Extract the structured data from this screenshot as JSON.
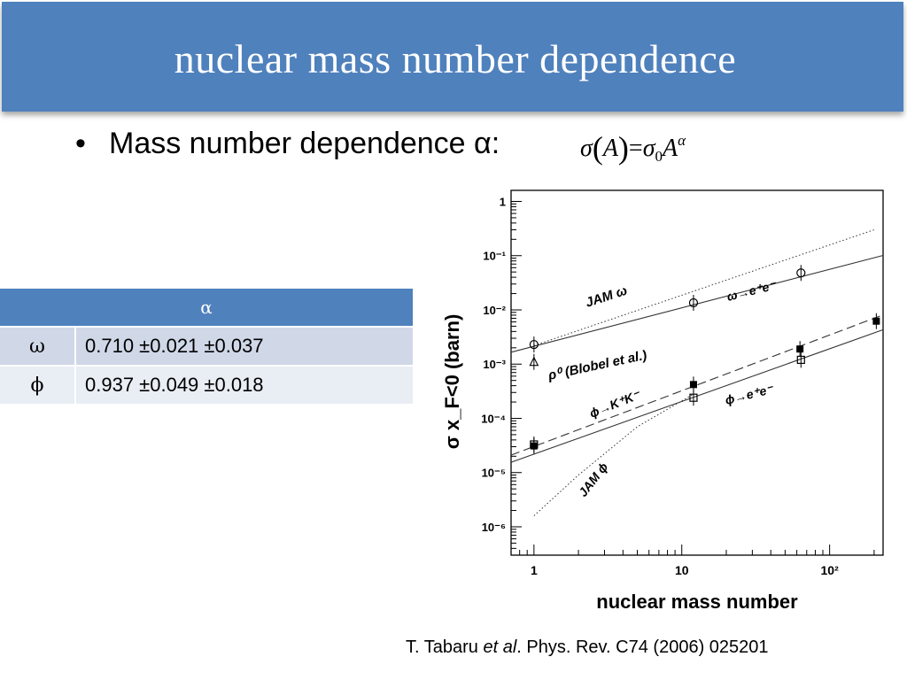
{
  "slide": {
    "title": "nuclear mass number dependence",
    "bullet_text": "Mass number dependence α:",
    "formula": {
      "sigma": "σ",
      "A": "A",
      "eq": "=",
      "sigma0": "σ",
      "sub0": "0",
      "A2": "A",
      "exp": "α"
    },
    "table": {
      "header": "α",
      "rows": [
        {
          "symbol": "ω",
          "value": "0.710 ±0.021 ±0.037"
        },
        {
          "symbol": "ϕ",
          "value": "0.937 ±0.049 ±0.018"
        }
      ]
    },
    "reference": {
      "authors": "T. Tabaru ",
      "etal": "et al",
      "rest": ". Phys. Rev. C74 (2006) 025201"
    }
  },
  "colors": {
    "title_bg": "#4f81bd",
    "table_row1": "#d0d8e8",
    "table_row2": "#e9edf4"
  },
  "chart_data": {
    "type": "scatter",
    "xscale": "log",
    "yscale": "log",
    "xlim": [
      0.7,
      230
    ],
    "ylim": [
      3e-07,
      1.6
    ],
    "xlabel": "nuclear mass number",
    "ylabel": "σ x_F<0 (barn)",
    "xticks": [
      {
        "v": 1,
        "label": "1"
      },
      {
        "v": 10,
        "label": "10"
      },
      {
        "v": 100,
        "label": "10²"
      }
    ],
    "yticks": [
      {
        "v": 1,
        "label": "1"
      },
      {
        "v": 0.1,
        "label": "10⁻¹"
      },
      {
        "v": 0.01,
        "label": "10⁻²"
      },
      {
        "v": 0.001,
        "label": "10⁻³"
      },
      {
        "v": 0.0001,
        "label": "10⁻⁴"
      },
      {
        "v": 1e-05,
        "label": "10⁻⁵"
      },
      {
        "v": 1e-06,
        "label": "10⁻⁶"
      }
    ],
    "series": [
      {
        "name": "ω→e⁺e⁻",
        "marker": "circle",
        "x": [
          1,
          12,
          64
        ],
        "y": [
          0.0023,
          0.0135,
          0.048
        ]
      },
      {
        "name": "ρ⁰ (Blobel et al.)",
        "marker": "triangle",
        "x": [
          1
        ],
        "y": [
          0.0011
        ]
      },
      {
        "name": "ϕ→K⁺K⁻",
        "marker": "filled-square",
        "x": [
          1,
          12,
          63,
          207
        ],
        "y": [
          3.1e-05,
          0.00042,
          0.0019,
          0.0062
        ]
      },
      {
        "name": "ϕ→e⁺e⁻",
        "marker": "open-square",
        "x": [
          1,
          12,
          64
        ],
        "y": [
          3.3e-05,
          0.00024,
          0.0012
        ]
      }
    ],
    "fit_lines": [
      {
        "name": "ω fit",
        "style": "solid",
        "x": [
          0.7,
          230
        ],
        "y": [
          0.00166,
          0.101
        ]
      },
      {
        "name": "ϕ→K⁺K⁻ fit",
        "style": "dashed",
        "x": [
          0.7,
          230
        ],
        "y": [
          2.1e-05,
          0.0081
        ]
      },
      {
        "name": "ϕ→e⁺e⁻ fit",
        "style": "solid",
        "x": [
          0.7,
          230
        ],
        "y": [
          1.55e-05,
          0.0043
        ]
      },
      {
        "name": "JAM ω",
        "style": "dotted",
        "x": [
          1,
          200
        ],
        "y": [
          0.0022,
          0.3
        ]
      },
      {
        "name": "JAM ϕ",
        "style": "dotted",
        "x": [
          1,
          2,
          5,
          12
        ],
        "y": [
          1.6e-06,
          9e-06,
          7e-05,
          0.00028
        ]
      }
    ],
    "annotations": [
      "JAM ω",
      "ω→e⁺e⁻",
      "ρ⁰ (Blobel et al.)",
      "ϕ→K⁺K⁻",
      "ϕ→e⁺e⁻",
      "JAM ϕ"
    ]
  }
}
